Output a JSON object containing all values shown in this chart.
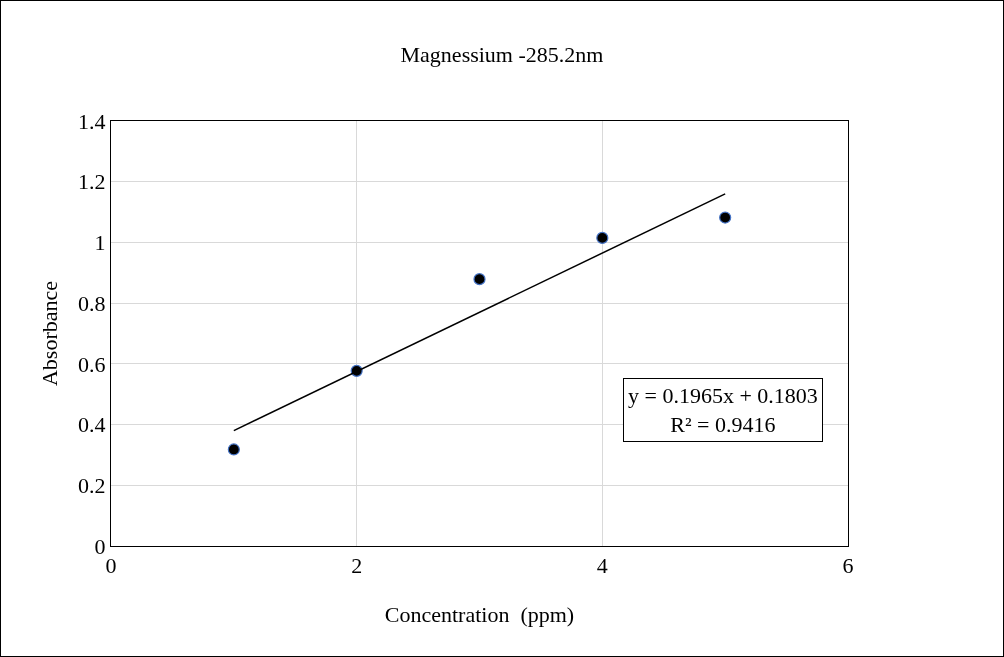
{
  "chart_data": {
    "type": "scatter",
    "title": "Magnessium -285.2nm",
    "xlabel": "Concentration  (ppm)",
    "ylabel": "Absorbance",
    "x": [
      1,
      2,
      3,
      4,
      5
    ],
    "series": [
      {
        "color": "#000000",
        "values": [
          0.318,
          0.577,
          0.879,
          1.015,
          1.082
        ],
        "marker": "circle"
      },
      {
        "type": "line",
        "color": "#000000",
        "x": [
          1,
          5
        ],
        "values": [
          0.38,
          1.16
        ],
        "marker": "none",
        "line_style": "solid"
      }
    ],
    "xlim": [
      0,
      6
    ],
    "xticks": [
      0,
      2,
      4,
      6
    ],
    "ylim": [
      0,
      1.4
    ],
    "yticks": [
      0,
      0.2,
      0.4,
      0.6,
      0.8,
      1,
      1.2,
      1.4
    ],
    "grid": true,
    "annotations": [
      "y = 0.1965x + 0.1803",
      "R² = 0.9416"
    ]
  }
}
